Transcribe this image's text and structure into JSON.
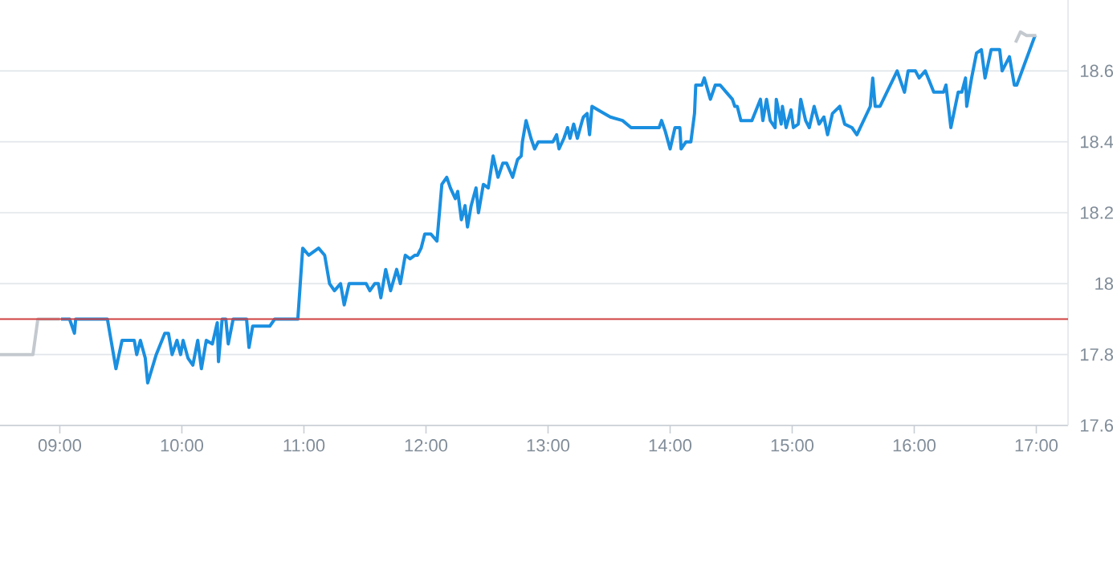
{
  "chart_data": {
    "type": "line",
    "xlim": [
      8.51,
      17.26
    ],
    "ylim": [
      17.6,
      18.8
    ],
    "xticks": [
      {
        "value": 9,
        "label": "09:00"
      },
      {
        "value": 10,
        "label": "10:00"
      },
      {
        "value": 11,
        "label": "11:00"
      },
      {
        "value": 12,
        "label": "12:00"
      },
      {
        "value": 13,
        "label": "13:00"
      },
      {
        "value": 14,
        "label": "14:00"
      },
      {
        "value": 15,
        "label": "15:00"
      },
      {
        "value": 16,
        "label": "16:00"
      },
      {
        "value": 17,
        "label": "17:00"
      }
    ],
    "yticks": [
      17.6,
      17.8,
      18,
      18.2,
      18.4,
      18.6
    ],
    "grid": "y",
    "ref_lines": [
      {
        "axis": "y",
        "value": 17.9,
        "color": "#d04040"
      }
    ],
    "series": [
      {
        "color": "#c3c9cf",
        "x": [
          8.51,
          8.78,
          8.82,
          9.0
        ],
        "values": [
          17.8,
          17.8,
          17.9,
          17.9
        ]
      },
      {
        "color": "#1a8fe0",
        "x": [
          9.01,
          9.08,
          9.12,
          9.13,
          9.39,
          9.46,
          9.51,
          9.61,
          9.63,
          9.66,
          9.7,
          9.72,
          9.79,
          9.86,
          9.89,
          9.92,
          9.96,
          9.99,
          10.01,
          10.05,
          10.09,
          10.13,
          10.16,
          10.2,
          10.25,
          10.29,
          10.3,
          10.33,
          10.36,
          10.38,
          10.42,
          10.53,
          10.55,
          10.58,
          10.72,
          10.76,
          10.95,
          10.99,
          11.04,
          11.12,
          11.17,
          11.21,
          11.25,
          11.3,
          11.33,
          11.37,
          11.43,
          11.51,
          11.54,
          11.58,
          11.61,
          11.63,
          11.67,
          11.71,
          11.76,
          11.79,
          11.83,
          11.87,
          11.91,
          11.93,
          11.96,
          11.99,
          12.04,
          12.09,
          12.13,
          12.17,
          12.2,
          12.24,
          12.26,
          12.29,
          12.32,
          12.34,
          12.37,
          12.41,
          12.43,
          12.47,
          12.51,
          12.55,
          12.59,
          12.63,
          12.66,
          12.71,
          12.75,
          12.78,
          12.79,
          12.82,
          12.86,
          12.89,
          12.92,
          13.04,
          13.07,
          13.09,
          13.13,
          13.16,
          13.18,
          13.21,
          13.24,
          13.28,
          13.29,
          13.32,
          13.34,
          13.36,
          13.41,
          13.51,
          13.61,
          13.68,
          13.91,
          13.93,
          13.96,
          14.0,
          14.04,
          14.08,
          14.09,
          14.13,
          14.17,
          14.2,
          14.21,
          14.26,
          14.28,
          14.33,
          14.37,
          14.41,
          14.46,
          14.51,
          14.53,
          14.55,
          14.58,
          14.67,
          14.74,
          14.76,
          14.79,
          14.82,
          14.86,
          14.87,
          14.91,
          14.92,
          14.95,
          14.99,
          15.01,
          15.05,
          15.07,
          15.11,
          15.14,
          15.18,
          15.22,
          15.26,
          15.29,
          15.33,
          15.39,
          15.43,
          15.49,
          15.53,
          15.64,
          15.66,
          15.68,
          15.72,
          15.86,
          15.92,
          15.95,
          16.01,
          16.04,
          16.09,
          16.16,
          16.24,
          16.26,
          16.3,
          16.36,
          16.39,
          16.42,
          16.43,
          16.47,
          16.51,
          16.55,
          16.58,
          16.63,
          16.7,
          16.72,
          16.78,
          16.82,
          16.84,
          16.99
        ],
        "values": [
          17.9,
          17.9,
          17.86,
          17.9,
          17.9,
          17.76,
          17.84,
          17.84,
          17.8,
          17.84,
          17.79,
          17.72,
          17.8,
          17.86,
          17.86,
          17.8,
          17.84,
          17.8,
          17.84,
          17.79,
          17.77,
          17.84,
          17.76,
          17.84,
          17.83,
          17.89,
          17.78,
          17.9,
          17.9,
          17.83,
          17.9,
          17.9,
          17.82,
          17.88,
          17.88,
          17.9,
          17.9,
          18.1,
          18.08,
          18.1,
          18.08,
          18.0,
          17.98,
          18.0,
          17.94,
          18.0,
          18.0,
          18.0,
          17.98,
          18.0,
          18.0,
          17.96,
          18.04,
          17.98,
          18.04,
          18.0,
          18.08,
          18.07,
          18.08,
          18.08,
          18.1,
          18.14,
          18.14,
          18.12,
          18.28,
          18.3,
          18.27,
          18.24,
          18.26,
          18.18,
          18.22,
          18.16,
          18.22,
          18.27,
          18.2,
          18.28,
          18.27,
          18.36,
          18.3,
          18.34,
          18.34,
          18.3,
          18.35,
          18.36,
          18.4,
          18.46,
          18.41,
          18.38,
          18.4,
          18.4,
          18.42,
          18.38,
          18.41,
          18.44,
          18.41,
          18.45,
          18.41,
          18.46,
          18.47,
          18.48,
          18.42,
          18.5,
          18.49,
          18.47,
          18.46,
          18.44,
          18.44,
          18.46,
          18.43,
          18.38,
          18.44,
          18.44,
          18.38,
          18.4,
          18.4,
          18.48,
          18.56,
          18.56,
          18.58,
          18.52,
          18.56,
          18.56,
          18.54,
          18.52,
          18.5,
          18.5,
          18.46,
          18.46,
          18.52,
          18.46,
          18.52,
          18.46,
          18.44,
          18.52,
          18.45,
          18.5,
          18.44,
          18.49,
          18.44,
          18.45,
          18.52,
          18.46,
          18.44,
          18.5,
          18.45,
          18.47,
          18.42,
          18.48,
          18.5,
          18.45,
          18.44,
          18.42,
          18.5,
          18.58,
          18.5,
          18.5,
          18.6,
          18.54,
          18.6,
          18.6,
          18.58,
          18.6,
          18.54,
          18.54,
          18.56,
          18.44,
          18.54,
          18.54,
          18.58,
          18.5,
          18.58,
          18.65,
          18.66,
          18.58,
          18.66,
          18.66,
          18.6,
          18.64,
          18.56,
          18.56,
          18.7
        ]
      },
      {
        "color": "#c3c9cf",
        "x": [
          16.83,
          16.87,
          16.92,
          17.0
        ],
        "values": [
          18.68,
          18.71,
          18.7,
          18.7
        ]
      }
    ]
  }
}
